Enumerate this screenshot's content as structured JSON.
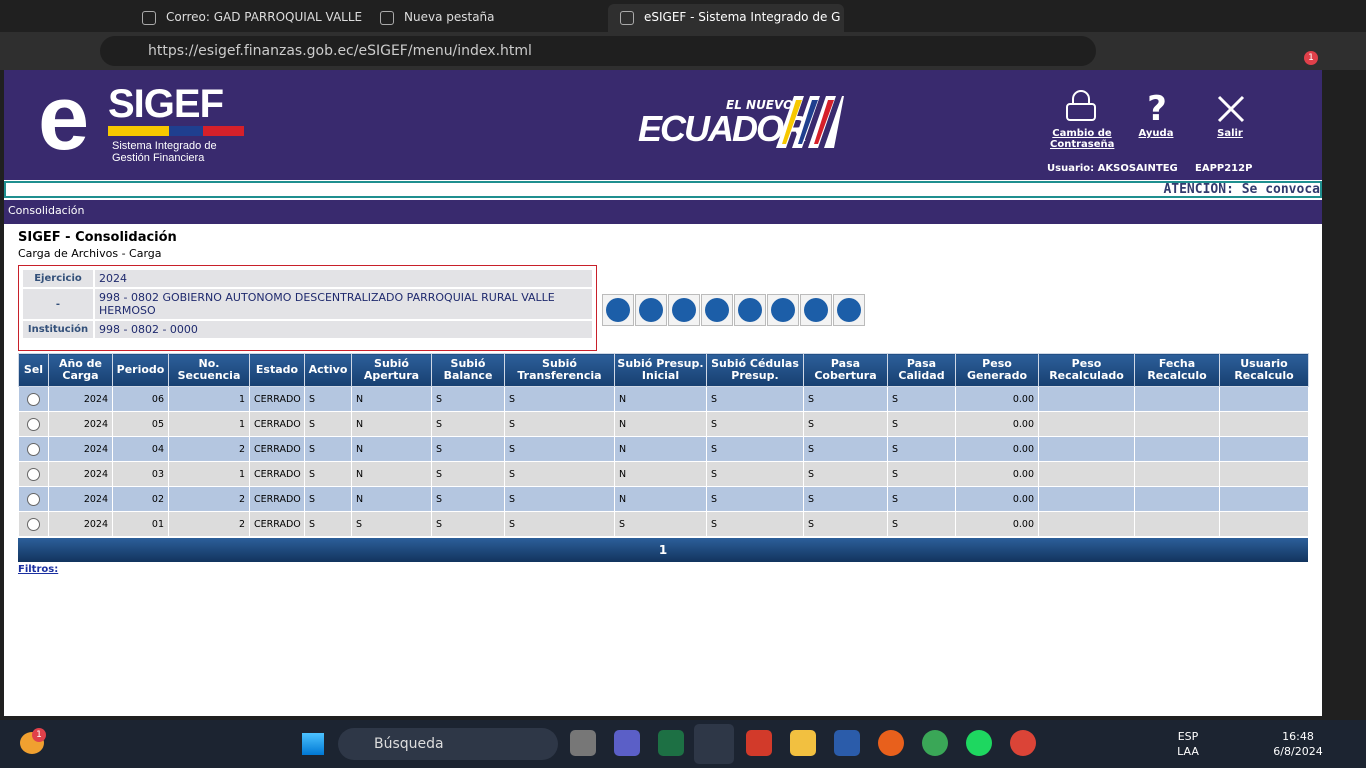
{
  "browser": {
    "tabs": [
      "Correo: GAD PARROQUIAL VALLE",
      "Nueva pestaña",
      "eSIGEF - Sistema Integrado de G"
    ],
    "url": "https://esigef.finanzas.gob.ec/eSIGEF/menu/index.html",
    "badge": "1"
  },
  "header": {
    "logo_e": "e",
    "logo_text": "SIGEF",
    "tagline": "Sistema Integrado de Gestión Financiera",
    "brand_top": "EL NUEVO",
    "brand": "ECUADOR",
    "links": [
      "Cambio de Contraseña",
      "Ayuda",
      "Salir"
    ],
    "user": "Usuario: AKSOSAINTEG",
    "code": "EAPP212P"
  },
  "notice": "ATENCIÓN: Se convoca",
  "breadcrumb": "Consolidación",
  "page": {
    "title": "SIGEF - Consolidación",
    "subtitle": "Carga de Archivos - Carga"
  },
  "info": {
    "rows": [
      [
        "Ejercicio",
        "2024"
      ],
      [
        "-",
        "998 - 0802 GOBIERNO AUTONOMO DESCENTRALIZADO PARROQUIAL RURAL VALLE HERMOSO"
      ],
      [
        "Institución",
        "998 - 0802 - 0000"
      ]
    ]
  },
  "table": {
    "columns": [
      "Sel",
      "Año de Carga",
      "Periodo",
      "No. Secuencia",
      "Estado",
      "Activo",
      "Subió Apertura",
      "Subió Balance",
      "Subió Transferencia",
      "Subió Presup. Inicial",
      "Subió Cédulas Presup.",
      "Pasa Cobertura",
      "Pasa Calidad",
      "Peso Generado",
      "Peso Recalculado",
      "Fecha Recalculo",
      "Usuario Recalculo"
    ],
    "rows": [
      [
        "2024",
        "06",
        "1",
        "CERRADO",
        "S",
        "N",
        "S",
        "S",
        "N",
        "S",
        "S",
        "S",
        "0.00"
      ],
      [
        "2024",
        "05",
        "1",
        "CERRADO",
        "S",
        "N",
        "S",
        "S",
        "N",
        "S",
        "S",
        "S",
        "0.00"
      ],
      [
        "2024",
        "04",
        "2",
        "CERRADO",
        "S",
        "N",
        "S",
        "S",
        "N",
        "S",
        "S",
        "S",
        "0.00"
      ],
      [
        "2024",
        "03",
        "1",
        "CERRADO",
        "S",
        "N",
        "S",
        "S",
        "N",
        "S",
        "S",
        "S",
        "0.00"
      ],
      [
        "2024",
        "02",
        "2",
        "CERRADO",
        "S",
        "N",
        "S",
        "S",
        "N",
        "S",
        "S",
        "S",
        "0.00"
      ],
      [
        "2024",
        "01",
        "2",
        "CERRADO",
        "S",
        "S",
        "S",
        "S",
        "S",
        "S",
        "S",
        "S",
        "0.00"
      ]
    ],
    "page": "1"
  },
  "filters": "Filtros:",
  "taskbar": {
    "weather_badge": "1",
    "search": "Búsqueda",
    "lang": "ESP",
    "layout": "LAA",
    "time": "16:48",
    "date": "6/8/2024"
  }
}
